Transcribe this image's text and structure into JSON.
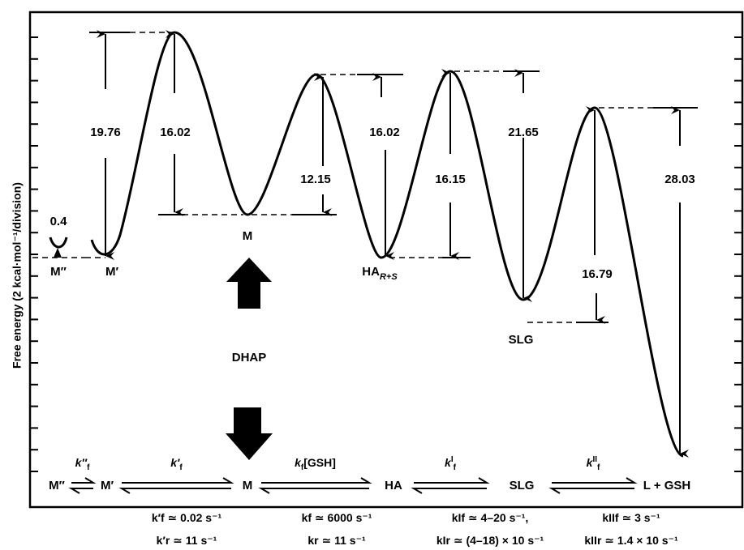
{
  "y_axis_label": "Free energy (2 kcal·mol⁻¹/division)",
  "states": {
    "m_double_prime": "M″",
    "m_prime": "M′",
    "m": "M",
    "ha_r_s": "HA",
    "ha_r_s_subscript": "R+S",
    "slg": "SLG",
    "dhap": "DHAP"
  },
  "energy_values": {
    "m2_to_m1": "0.4",
    "m1_barrier_forward": "19.76",
    "m_barrier_reverse": "16.02",
    "m_to_ha_barrier": "12.15",
    "ha_barrier_reverse": "16.02",
    "ha_to_slg_barrier": "16.15",
    "slg_barrier_reverse": "21.65",
    "slg_to_product_barrier": "16.79",
    "product_barrier_reverse": "28.03"
  },
  "scheme": {
    "species": [
      "M″",
      "M′",
      "M",
      "HA",
      "SLG",
      "L + GSH"
    ],
    "steps": [
      {
        "k": "k″",
        "sub": "f",
        "extra": ""
      },
      {
        "k": "k′",
        "sub": "f",
        "extra": ""
      },
      {
        "k": "k",
        "sub": "f",
        "extra": "[GSH]"
      },
      {
        "k": "k",
        "sub": "f",
        "sup": "I",
        "extra": ""
      },
      {
        "k": "k",
        "sub": "f",
        "sup": "II",
        "extra": ""
      }
    ]
  },
  "rates": [
    {
      "fwd": "k′f ≃ 0.02 s⁻¹",
      "rev": "k′r ≃ 11 s⁻¹"
    },
    {
      "fwd": "kf ≃ 6000 s⁻¹",
      "rev": "kr ≃ 11 s⁻¹"
    },
    {
      "fwd": "kIf ≃ 4–20 s⁻¹,",
      "rev": "kIr ≃ (4–18) × 10 s⁻¹"
    },
    {
      "fwd": "kIIf ≃ 3 s⁻¹",
      "rev": "kIIr ≃ 1.4 × 10 s⁻¹"
    }
  ]
}
